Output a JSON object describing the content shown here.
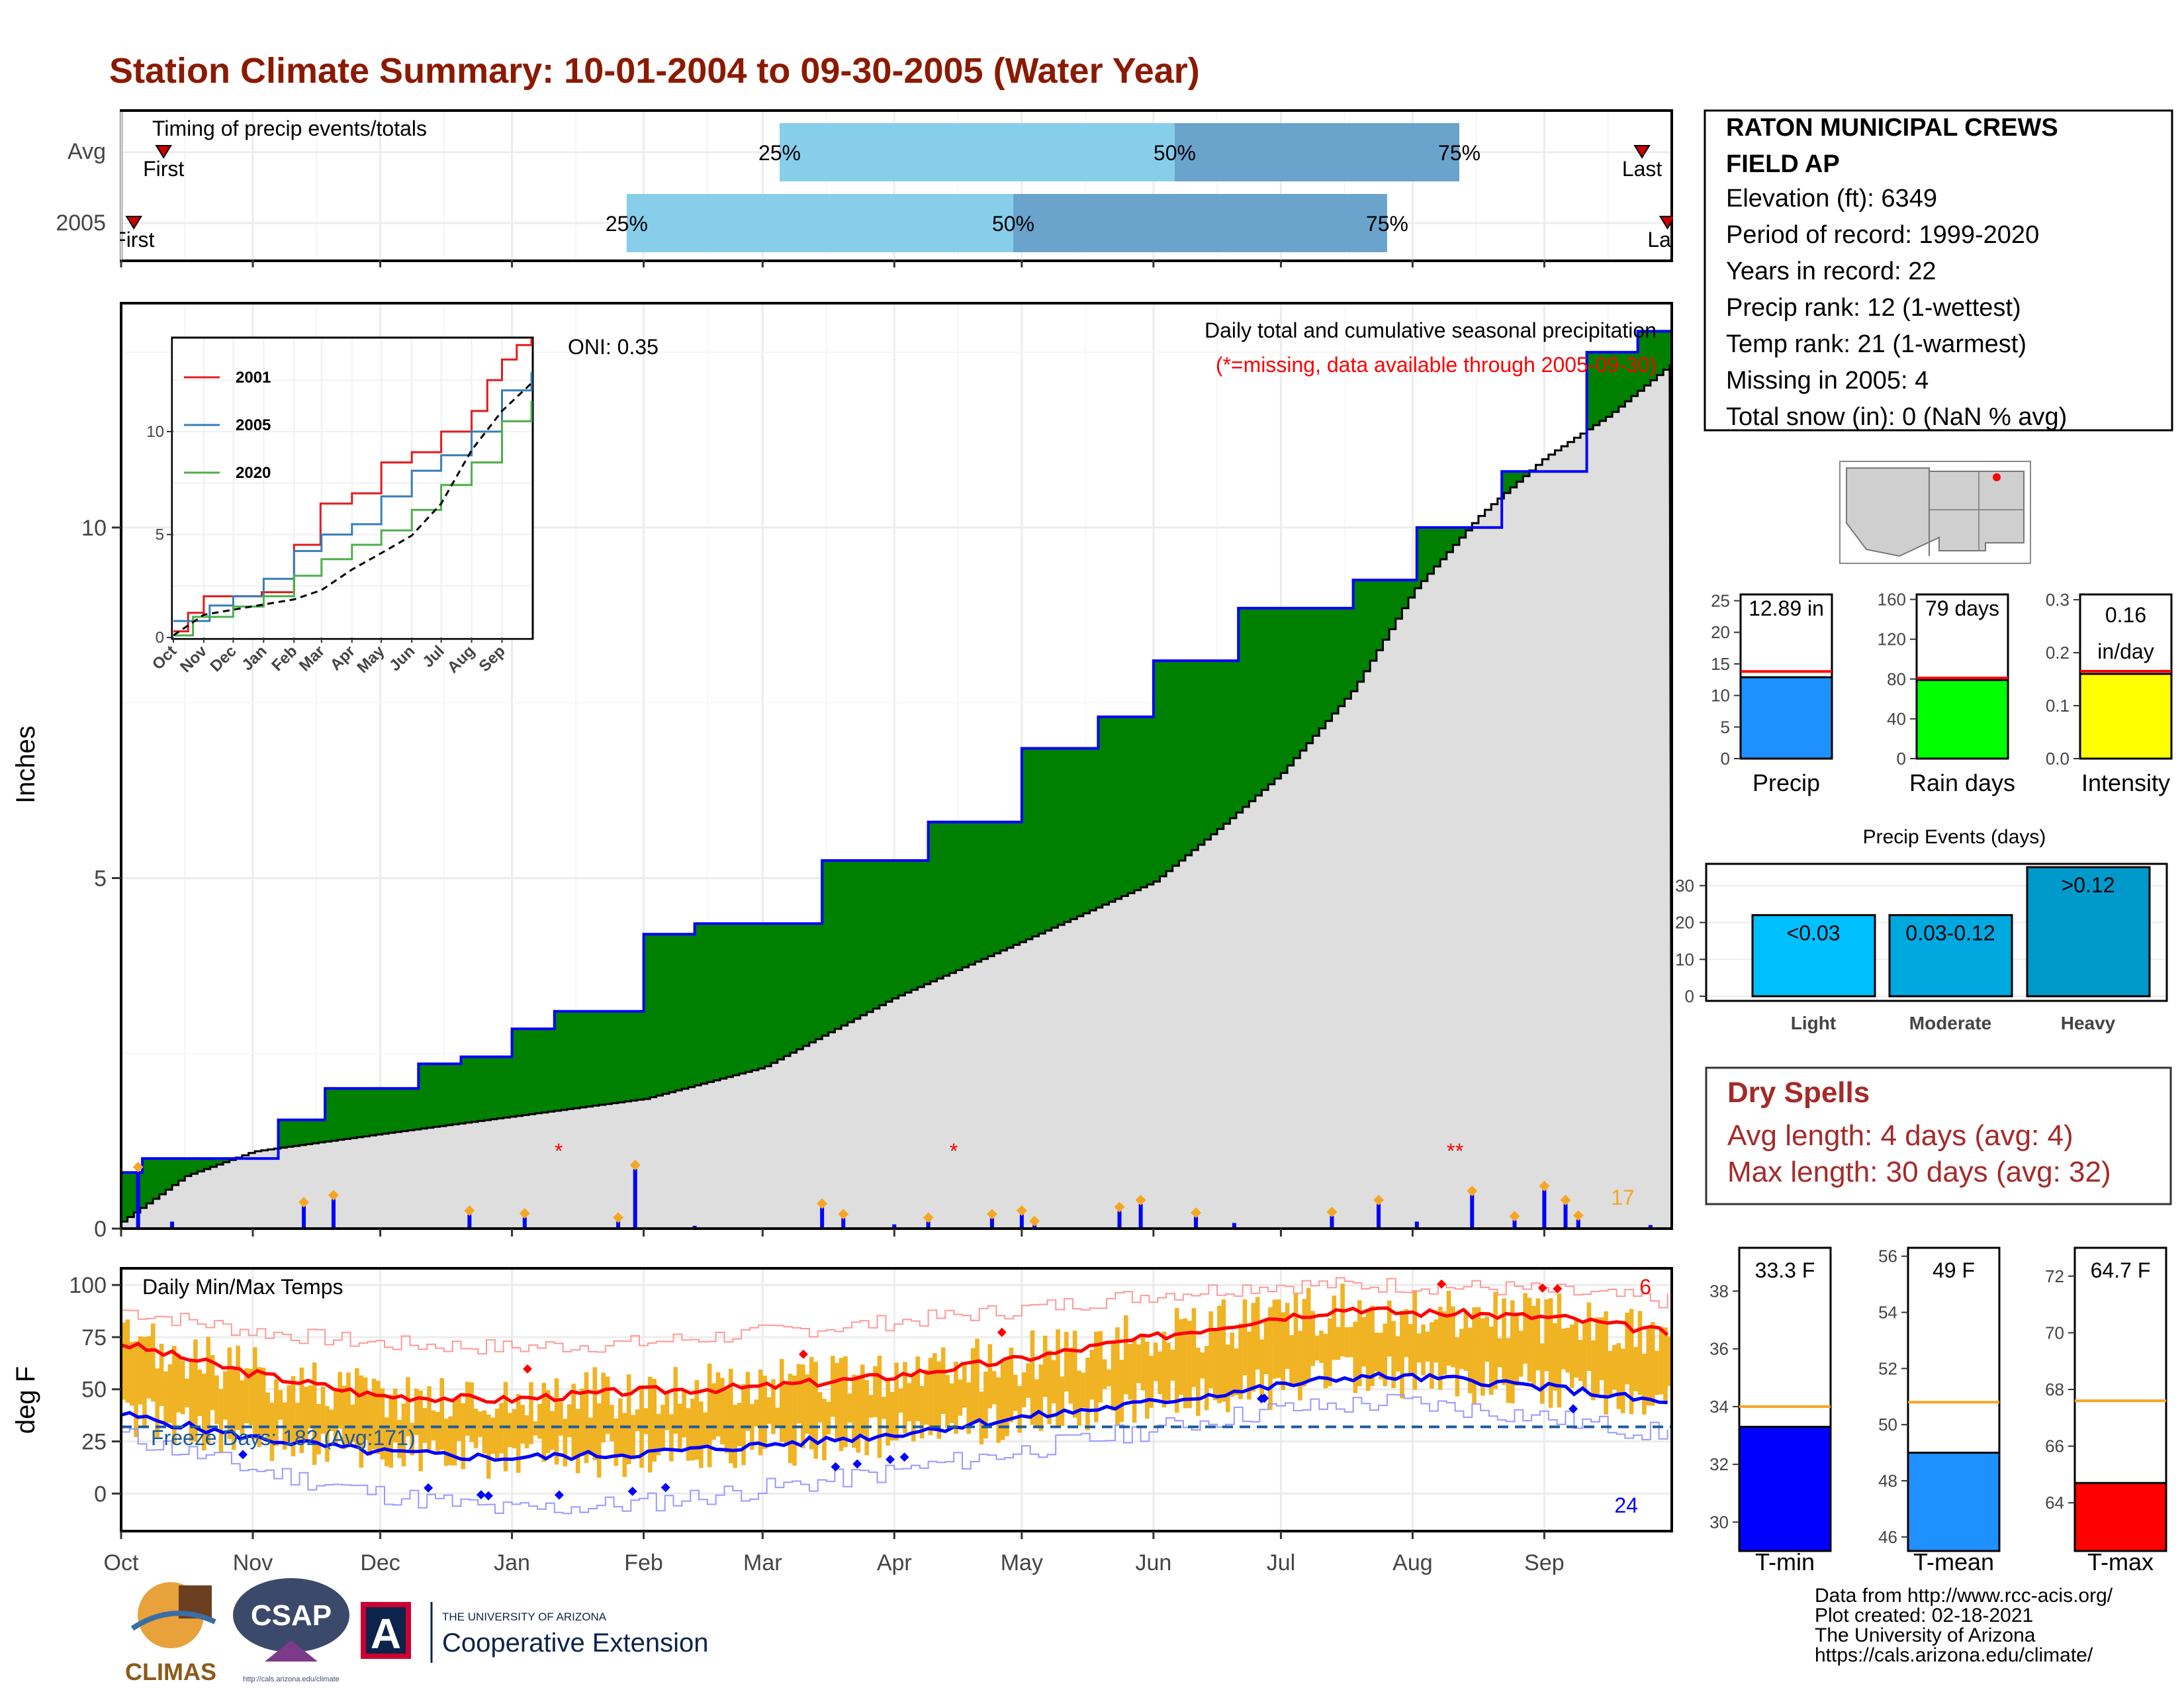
{
  "title": "Station Climate Summary: 10-01-2004 to 09-30-2005 (Water Year)",
  "colors": {
    "title": "#8b1a00",
    "quartile_light": "#87ceeb",
    "quartile_dark": "#6aa3cc",
    "cumulative_obs": "#008000",
    "cumulative_avg": "#dedede",
    "daily_bar": "#0000ff",
    "marker_orange": "#f5a623",
    "missing": "#ff0000",
    "tmax_line": "#ff0000",
    "tmin_line": "#0000ff",
    "temp_bar": "#f0b323",
    "freeze_line": "#1a5aa0",
    "precip_bar": "#1e90ff",
    "raindays_bar": "#00ff00",
    "intensity_bar": "#ffff00",
    "event_light": "#00bfff",
    "event_moderate": "#00a8e0",
    "event_heavy": "#0099cc",
    "dry_spells": "#a52a2a",
    "tmin_bar": "#0000ff",
    "tmean_bar": "#1e90ff",
    "tmax_bar": "#ff0000"
  },
  "timing_panel": {
    "label": "Timing of precip events/totals",
    "rows": [
      {
        "name": "Avg",
        "first_label": "First",
        "last_label": "Last",
        "q25": "25%",
        "q50": "50%",
        "q75": "75%",
        "first_day": 10,
        "last_day": 358,
        "q25_day": 155,
        "q50_day": 248,
        "q75_day": 315
      },
      {
        "name": "2005",
        "first_label": "First",
        "last_label": "Last",
        "q25": "25%",
        "q50": "50%",
        "q75": "75%",
        "first_day": 3,
        "last_day": 364,
        "q25_day": 119,
        "q50_day": 210,
        "q75_day": 298
      }
    ]
  },
  "x_axis": {
    "ticks": [
      {
        "label": "Oct",
        "day": 0
      },
      {
        "label": "Nov",
        "day": 31
      },
      {
        "label": "Dec",
        "day": 61
      },
      {
        "label": "Jan",
        "day": 92
      },
      {
        "label": "Feb",
        "day": 123
      },
      {
        "label": "Mar",
        "day": 151
      },
      {
        "label": "Apr",
        "day": 182
      },
      {
        "label": "May",
        "day": 212
      },
      {
        "label": "Jun",
        "day": 243
      },
      {
        "label": "Jul",
        "day": 273
      },
      {
        "label": "Aug",
        "day": 304
      },
      {
        "label": "Sep",
        "day": 335
      }
    ],
    "xlim": [
      0,
      365
    ]
  },
  "precip_panel": {
    "ylabel": "Inches",
    "yticks": [
      0,
      5,
      10
    ],
    "ylim": [
      0,
      13.2
    ],
    "annotation_title": "Daily total and cumulative seasonal precipitation",
    "annotation_missing": "(*=missing, data available through 2005-09-30)",
    "oni": "ONI: 0.35",
    "count_label": "17",
    "missing_marker": "*"
  },
  "inset": {
    "yticks": [
      0,
      5,
      10
    ],
    "ylim": [
      0,
      14.5
    ],
    "xticks": [
      "Oct",
      "Nov",
      "Dec",
      "Jan",
      "Feb",
      "Mar",
      "Apr",
      "May",
      "Jun",
      "Jul",
      "Aug",
      "Sep"
    ],
    "series_names": [
      "2001",
      "2005",
      "2020"
    ],
    "series_colors": [
      "#e41a1c",
      "#377eb8",
      "#4daf4a"
    ]
  },
  "temp_panel": {
    "ylabel": "deg F",
    "label": "Daily Min/Max Temps",
    "yticks": [
      0,
      25,
      50,
      75,
      100
    ],
    "ylim": [
      -18,
      108
    ],
    "freeze_label": "Freeze Days: 182 (Avg:171)",
    "freeze_level": 32,
    "hot_count": "6",
    "cold_count": "24"
  },
  "station_box": {
    "name_line1": "RATON MUNICIPAL CREWS",
    "name_line2": "FIELD AP",
    "lines": [
      "Elevation (ft): 6349",
      "Period of record: 1999-2020",
      "Years in record: 22",
      "Precip rank: 12 (1-wettest)",
      "Temp rank: 21 (1-warmest)",
      "Missing in 2005: 4",
      "Total snow (in): 0 (NaN % avg)"
    ]
  },
  "summary_bars": [
    {
      "key": "precip",
      "label": "Precip",
      "value_label": "12.89 in",
      "value": 12.89,
      "avg": 13.8,
      "yticks": [
        "0",
        "5",
        "10",
        "15",
        "20",
        "25"
      ],
      "ytick_values": [
        0,
        5,
        10,
        15,
        20,
        25
      ],
      "ymax": 26
    },
    {
      "key": "raindays",
      "label": "Rain days",
      "value_label": "79 days",
      "value": 79,
      "avg": 81,
      "yticks": [
        "0",
        "40",
        "80",
        "120",
        "160"
      ],
      "ytick_values": [
        0,
        40,
        80,
        120,
        160
      ],
      "ymax": 165
    },
    {
      "key": "intensity",
      "label": "Intensity",
      "value_label": "0.16",
      "value_label2": "in/day",
      "value": 0.16,
      "avg": 0.165,
      "yticks": [
        "0.0",
        "0.1",
        "0.2",
        "0.3"
      ],
      "ytick_values": [
        0,
        0.1,
        0.2,
        0.3
      ],
      "ymax": 0.31
    }
  ],
  "precip_events": {
    "title": "Precip Events (days)",
    "yticks": [
      0,
      10,
      20,
      30
    ],
    "ymax": 35,
    "categories": [
      "Light",
      "Moderate",
      "Heavy"
    ],
    "range_labels": [
      "<0.03",
      "0.03-0.12",
      ">0.12"
    ],
    "values": [
      22,
      22,
      35
    ]
  },
  "dry_spells": {
    "title": "Dry Spells",
    "avg_line": "Avg length: 4 days (avg: 4)",
    "max_line": "Max length: 30 days (avg: 32)"
  },
  "temp_bars": [
    {
      "key": "tmin",
      "label": "T-min",
      "value_label": "33.3 F",
      "value": 33.3,
      "avg": 34.0,
      "yticks": [
        "30",
        "32",
        "34",
        "36",
        "38"
      ],
      "ytick_values": [
        30,
        32,
        34,
        36,
        38
      ],
      "ylim": [
        29,
        39.5
      ]
    },
    {
      "key": "tmean",
      "label": "T-mean",
      "value_label": "49 F",
      "value": 49.0,
      "avg": 50.8,
      "yticks": [
        "46",
        "48",
        "50",
        "52",
        "54",
        "56"
      ],
      "ytick_values": [
        46,
        48,
        50,
        52,
        54,
        56
      ],
      "ylim": [
        45.5,
        56.3
      ]
    },
    {
      "key": "tmax",
      "label": "T-max",
      "value_label": "64.7 F",
      "value": 64.7,
      "avg": 67.6,
      "yticks": [
        "64",
        "66",
        "68",
        "70",
        "72"
      ],
      "ytick_values": [
        64,
        66,
        68,
        70,
        72
      ],
      "ylim": [
        62.3,
        73
      ]
    }
  ],
  "footer": {
    "line1": "Data from http://www.rcc-acis.org/",
    "line2": "Plot created: 02-18-2021",
    "line3": "The University of Arizona",
    "line4": "https://cals.arizona.edu/climate/"
  },
  "logos": {
    "climas": "CLIMAS",
    "csap": "CSAP",
    "csap_url": "http://cals.arizona.edu/climate",
    "ua_small": "THE UNIVERSITY OF ARIZONA",
    "ua_big": "Cooperative Extension",
    "ua_letter": "A"
  },
  "chart_data": [
    {
      "type": "area",
      "title": "Daily total and cumulative seasonal precipitation",
      "ylabel": "Inches",
      "ylim": [
        0,
        13.2
      ],
      "x_units": "day of water year (0 = Oct 1)",
      "series": [
        {
          "name": "",
          "kind": "observed cumulative (step)",
          "x": [
            0,
            5,
            37,
            48,
            61,
            70,
            80,
            92,
            102,
            123,
            135,
            165,
            190,
            212,
            230,
            243,
            263,
            290,
            305,
            325,
            345,
            357,
            365
          ],
          "y": [
            0.8,
            1.0,
            1.55,
            2.0,
            2.0,
            2.35,
            2.45,
            2.85,
            3.1,
            4.2,
            4.35,
            5.25,
            5.8,
            6.85,
            7.3,
            8.1,
            8.85,
            9.25,
            10.0,
            10.8,
            12.5,
            12.8,
            12.89
          ]
        },
        {
          "name": "",
          "kind": "average cumulative",
          "x": [
            0,
            15,
            31,
            61,
            92,
            123,
            151,
            182,
            212,
            243,
            260,
            273,
            290,
            304,
            320,
            335,
            350,
            365
          ],
          "y": [
            0.1,
            0.75,
            1.1,
            1.35,
            1.6,
            1.85,
            2.3,
            3.3,
            4.1,
            4.95,
            5.8,
            6.5,
            7.7,
            9.1,
            10.2,
            11.0,
            11.6,
            12.35
          ]
        }
      ]
    },
    {
      "type": "bar",
      "title": "",
      "x_units": "day of water year",
      "series": [
        {
          "name": "",
          "x": [
            4,
            12,
            43,
            50,
            82,
            95,
            117,
            121,
            135,
            165,
            170,
            182,
            190,
            205,
            212,
            215,
            235,
            240,
            253,
            262,
            285,
            296,
            305,
            318,
            328,
            335,
            340,
            343,
            360
          ],
          "values": [
            0.82,
            0.1,
            0.32,
            0.42,
            0.2,
            0.16,
            0.1,
            0.85,
            0.04,
            0.3,
            0.15,
            0.06,
            0.1,
            0.15,
            0.2,
            0.05,
            0.25,
            0.35,
            0.17,
            0.08,
            0.18,
            0.35,
            0.1,
            0.48,
            0.12,
            0.55,
            0.35,
            0.13,
            0.05
          ]
        }
      ],
      "missing_days": [
        103,
        196,
        313,
        315
      ]
    },
    {
      "type": "line",
      "title": "",
      "ylim": [
        0,
        14.5
      ],
      "x_units": "day of water year",
      "series": [
        {
          "name": "2001",
          "x": [
            0,
            15,
            31,
            60,
            90,
            123,
            150,
            182,
            212,
            243,
            273,
            304,
            320,
            335,
            350,
            365
          ],
          "y": [
            0.3,
            1.2,
            2.0,
            2.0,
            2.2,
            4.5,
            6.5,
            7.0,
            8.5,
            9.0,
            10.0,
            11.0,
            12.5,
            13.5,
            14.2,
            14.5
          ]
        },
        {
          "name": "2005",
          "x": [
            0,
            37,
            61,
            92,
            123,
            151,
            182,
            212,
            243,
            273,
            304,
            335,
            365
          ],
          "y": [
            0.8,
            1.55,
            2.0,
            2.85,
            4.2,
            5.0,
            5.5,
            6.85,
            8.1,
            8.85,
            10.0,
            12.0,
            12.89
          ]
        },
        {
          "name": "2020",
          "x": [
            0,
            20,
            61,
            92,
            123,
            151,
            182,
            212,
            243,
            273,
            304,
            335,
            365
          ],
          "y": [
            0.1,
            1.0,
            1.5,
            2.0,
            3.0,
            3.8,
            4.5,
            5.2,
            6.2,
            7.4,
            8.5,
            10.5,
            11.5
          ]
        },
        {
          "name": "",
          "kind": "average (dashed)",
          "x": [
            0,
            31,
            61,
            92,
            123,
            151,
            182,
            212,
            243,
            273,
            304,
            335,
            365
          ],
          "y": [
            0.1,
            1.1,
            1.35,
            1.6,
            1.85,
            2.3,
            3.3,
            4.1,
            4.95,
            6.5,
            9.1,
            11.0,
            12.35
          ]
        }
      ]
    },
    {
      "type": "line",
      "title": "Daily Min/Max Temps",
      "ylabel": "deg F",
      "ylim": [
        -18,
        108
      ],
      "x_units": "day of water year",
      "series": [
        {
          "name": "",
          "kind": "avg max",
          "x": [
            0,
            30,
            60,
            90,
            120,
            150,
            180,
            210,
            240,
            270,
            290,
            300,
            320,
            340,
            365
          ],
          "y": [
            72,
            58,
            47,
            45,
            49,
            51,
            56,
            64,
            74,
            84,
            89,
            87,
            86,
            84,
            77
          ]
        },
        {
          "name": "",
          "kind": "avg min",
          "x": [
            0,
            30,
            60,
            90,
            120,
            150,
            180,
            210,
            240,
            270,
            290,
            300,
            320,
            340,
            365
          ],
          "y": [
            38,
            27,
            20,
            17,
            19,
            23,
            28,
            36,
            43,
            51,
            56,
            56,
            54,
            50,
            43
          ]
        },
        {
          "name": "",
          "kind": "record max",
          "x": [
            0,
            30,
            60,
            90,
            120,
            150,
            180,
            210,
            240,
            270,
            300,
            330,
            365
          ],
          "y": [
            88,
            78,
            72,
            70,
            72,
            77,
            82,
            88,
            95,
            100,
            100,
            98,
            92
          ]
        },
        {
          "name": "",
          "kind": "record min",
          "x": [
            0,
            30,
            60,
            90,
            120,
            150,
            180,
            210,
            240,
            270,
            300,
            330,
            365
          ],
          "y": [
            28,
            12,
            0,
            -8,
            -5,
            2,
            10,
            20,
            30,
            40,
            44,
            38,
            28
          ]
        }
      ]
    },
    {
      "type": "bar",
      "title": "",
      "categories": [
        "Light",
        "Moderate",
        "Heavy"
      ],
      "values": [
        22,
        22,
        35
      ],
      "ylim": [
        0,
        35
      ]
    }
  ]
}
